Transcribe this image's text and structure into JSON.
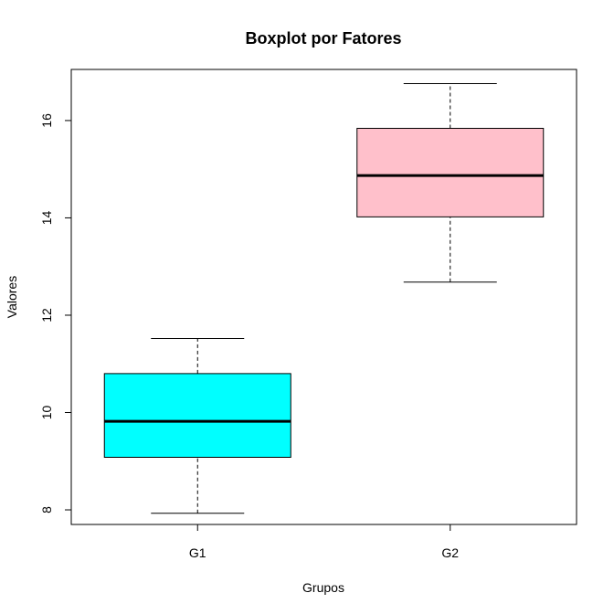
{
  "chart_data": {
    "type": "boxplot",
    "title": "Boxplot por Fatores",
    "xlabel": "Grupos",
    "ylabel": "Valores",
    "categories": [
      "G1",
      "G2"
    ],
    "ylim": [
      7.7,
      17.05
    ],
    "yticks": [
      8,
      10,
      12,
      14,
      16
    ],
    "grid": false,
    "boxes": [
      {
        "name": "G1",
        "min": 7.93,
        "q1": 9.08,
        "median": 9.82,
        "q3": 10.8,
        "max": 11.52,
        "color": "#00ffff"
      },
      {
        "name": "G2",
        "min": 12.68,
        "q1": 14.02,
        "median": 14.87,
        "q3": 15.84,
        "max": 16.76,
        "color": "#ffc0cb"
      }
    ]
  }
}
